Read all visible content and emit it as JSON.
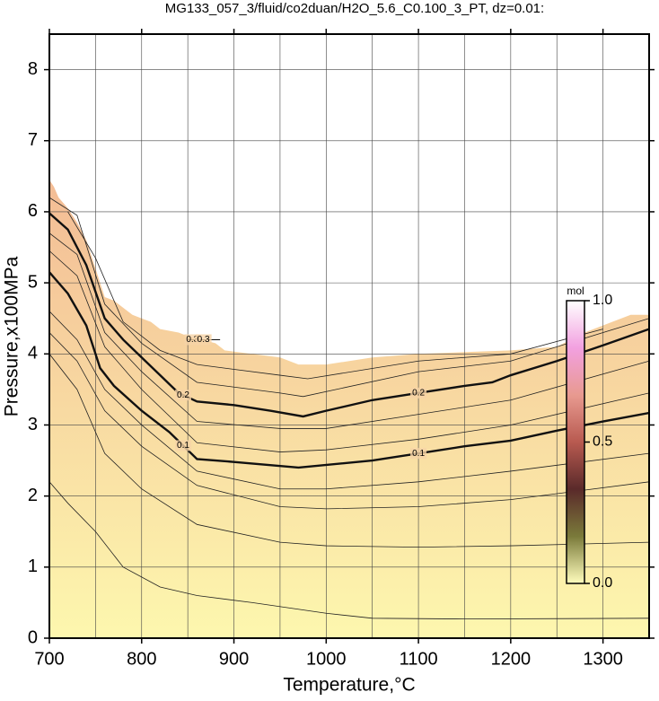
{
  "chart_data": {
    "type": "contour",
    "title": "MG133_057_3/fluid/co2duan/H2O_5.6_C0.100_3_PT, dz=0.01:",
    "xlabel": "Temperature,°C",
    "ylabel": "Pressure,x100MPa",
    "xlim": [
      700,
      1350
    ],
    "ylim": [
      0,
      8.5
    ],
    "xticks": [
      700,
      800,
      900,
      1000,
      1100,
      1200,
      1300
    ],
    "xminorticks": [
      750,
      850,
      950,
      1050,
      1150,
      1250
    ],
    "yticks": [
      0,
      1,
      2,
      3,
      4,
      5,
      6,
      7,
      8
    ],
    "grid": true,
    "fill_colors": [
      "#fdf7ae",
      "#f3bc95"
    ],
    "region": {
      "x": [
        700,
        705,
        710,
        720,
        730,
        740,
        750,
        760,
        770,
        780,
        790,
        800,
        810,
        820,
        840,
        850,
        880,
        890,
        950,
        970,
        1000,
        1050,
        1100,
        1200,
        1250,
        1280,
        1310,
        1330,
        1350
      ],
      "y": [
        6.45,
        6.35,
        6.2,
        6.05,
        5.85,
        5.6,
        5.2,
        4.8,
        4.75,
        4.65,
        4.55,
        4.5,
        4.45,
        4.35,
        4.3,
        4.25,
        4.15,
        4.05,
        3.95,
        3.85,
        3.85,
        3.95,
        4.0,
        4.05,
        4.1,
        4.3,
        4.45,
        4.55,
        4.55
      ]
    },
    "contours": [
      {
        "level": 0.1,
        "x": [
          700,
          720,
          740,
          755,
          770,
          800,
          830,
          860,
          900,
          970,
          1050,
          1100,
          1150,
          1200,
          1250,
          1300,
          1350
        ],
        "y": [
          5.15,
          4.85,
          4.4,
          3.8,
          3.55,
          3.2,
          2.9,
          2.52,
          2.48,
          2.4,
          2.5,
          2.6,
          2.7,
          2.78,
          2.92,
          3.05,
          3.17
        ],
        "label_x": [
          845,
          1100
        ]
      },
      {
        "level": 0.2,
        "x": [
          700,
          720,
          740,
          760,
          780,
          800,
          820,
          840,
          860,
          900,
          940,
          975,
          1000,
          1050,
          1100,
          1150,
          1180,
          1200,
          1250,
          1300,
          1350
        ],
        "y": [
          5.98,
          5.75,
          5.25,
          4.5,
          4.2,
          3.95,
          3.7,
          3.45,
          3.33,
          3.28,
          3.2,
          3.12,
          3.2,
          3.35,
          3.45,
          3.55,
          3.6,
          3.7,
          3.9,
          4.12,
          4.35
        ],
        "label_x": [
          845,
          1100
        ]
      },
      {
        "level": 0.3,
        "x": [
          850,
          885
        ],
        "y": [
          4.2,
          4.2
        ],
        "label_x": [
          855,
          867
        ]
      }
    ],
    "lines": [
      {
        "x": [
          700,
          720,
          750,
          780,
          820,
          860,
          920,
          1000,
          1050,
          1150,
          1350
        ],
        "y": [
          2.2,
          1.9,
          1.5,
          1.0,
          0.72,
          0.6,
          0.5,
          0.35,
          0.28,
          0.27,
          0.28
        ]
      },
      {
        "x": [
          700,
          730,
          760,
          800,
          860,
          950,
          1000,
          1100,
          1200,
          1350
        ],
        "y": [
          4.0,
          3.5,
          2.6,
          2.1,
          1.6,
          1.35,
          1.3,
          1.28,
          1.3,
          1.35
        ]
      },
      {
        "x": [
          700,
          730,
          760,
          800,
          860,
          950,
          1000,
          1100,
          1200,
          1350
        ],
        "y": [
          4.3,
          3.9,
          3.2,
          2.7,
          2.15,
          1.85,
          1.82,
          1.85,
          1.95,
          2.2
        ]
      },
      {
        "x": [
          700,
          730,
          760,
          800,
          860,
          950,
          1000,
          1100,
          1200,
          1350
        ],
        "y": [
          4.6,
          4.2,
          3.5,
          3.0,
          2.35,
          2.1,
          2.1,
          2.2,
          2.35,
          2.6
        ]
      },
      {
        "x": [
          700,
          730,
          760,
          800,
          860,
          950,
          1000,
          1100,
          1200,
          1350
        ],
        "y": [
          5.45,
          5.1,
          4.1,
          3.5,
          2.75,
          2.62,
          2.65,
          2.8,
          3.0,
          3.45
        ]
      },
      {
        "x": [
          700,
          730,
          760,
          800,
          860,
          950,
          1000,
          1100,
          1200,
          1350
        ],
        "y": [
          5.7,
          5.4,
          4.3,
          3.75,
          3.05,
          2.95,
          2.95,
          3.15,
          3.35,
          3.9
        ]
      },
      {
        "x": [
          700,
          730,
          760,
          800,
          860,
          950,
          975,
          1100,
          1200,
          1350
        ],
        "y": [
          6.2,
          5.95,
          4.7,
          4.15,
          3.6,
          3.45,
          3.4,
          3.75,
          3.9,
          4.5
        ]
      },
      {
        "x": [
          720,
          750,
          780,
          820,
          860,
          950,
          980,
          1100,
          1200,
          1300
        ],
        "y": [
          6.0,
          5.35,
          4.45,
          4.05,
          3.85,
          3.7,
          3.65,
          3.9,
          4.0,
          4.35
        ]
      }
    ],
    "colorbar": {
      "label": "mol",
      "lim": [
        0,
        1
      ],
      "ticks": [
        {
          "value": 0,
          "label": "0.0"
        },
        0.5,
        {
          "value": 1,
          "label": "1.0"
        }
      ],
      "colors": [
        "#fffdbd",
        "#7a7a3a",
        "#5a2a2a",
        "#b85a50",
        "#e89a90",
        "#f2a0e0",
        "#ffffff"
      ]
    }
  }
}
